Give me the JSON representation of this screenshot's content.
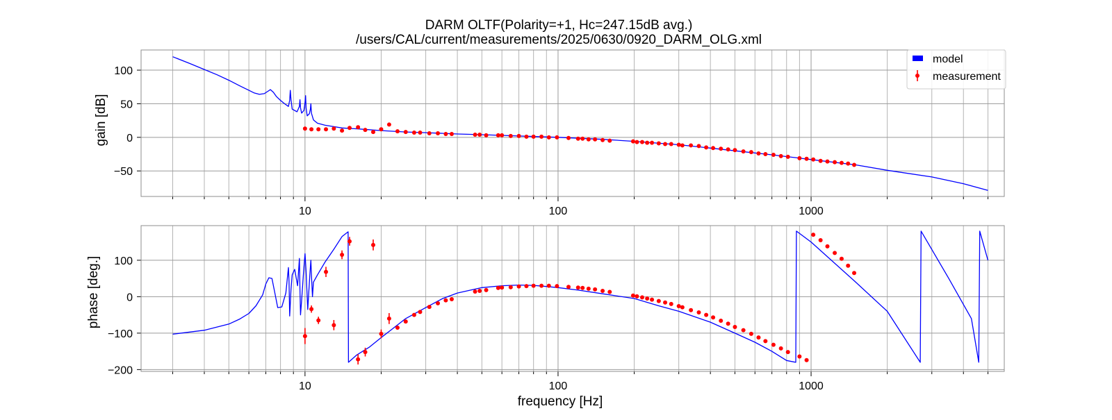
{
  "chart_data": {
    "type": "line",
    "title": "DARM OLTF(Polarity=+1,  Hc=247.15dB avg.)",
    "subtitle": "/users/CAL/current/measurements/2025/0630/0920_DARM_OLG.xml",
    "xlabel": "frequency [Hz]",
    "x_scale": "log",
    "xlim": [
      2.25,
      5800
    ],
    "x_major_ticks": [
      10,
      100,
      1000
    ],
    "x_tick_labels": [
      "10",
      "100",
      "1000"
    ],
    "grid": true,
    "legend_position": "top-right",
    "colors": {
      "model": "#0000ff",
      "measurement": "#ff0000"
    },
    "panels": [
      {
        "name": "gain",
        "ylabel": "gain [dB]",
        "ylim": [
          -88,
          130
        ],
        "y_ticks": [
          100,
          50,
          0,
          -50
        ],
        "y_tick_labels": [
          "100",
          "50",
          "0",
          "−50"
        ],
        "series": [
          {
            "name": "model",
            "style": "line",
            "x": [
              3,
              3.5,
              4,
              4.5,
              5,
              5.5,
              6,
              6.3,
              6.6,
              6.9,
              7.1,
              7.3,
              7.5,
              7.7,
              8,
              8.3,
              8.6,
              8.7,
              8.75,
              8.8,
              8.9,
              9.3,
              9.5,
              9.55,
              9.6,
              9.7,
              9.9,
              10.0,
              10.05,
              10.1,
              10.2,
              10.4,
              10.5,
              10.55,
              10.6,
              10.8,
              11.2,
              12,
              14,
              17,
              20,
              25,
              30,
              40,
              50,
              70,
              100,
              150,
              200,
              300,
              400,
              500,
              700,
              1000,
              1500,
              2000,
              3000,
              4000,
              5000
            ],
            "y": [
              120,
              110,
              101,
              93,
              85,
              77,
              70,
              66,
              64,
              65,
              68,
              71,
              67,
              61,
              55,
              50,
              46,
              55,
              70,
              56,
              42,
              38,
              46,
              56,
              44,
              36,
              40,
              52,
              62,
              44,
              32,
              35,
              42,
              50,
              36,
              26,
              21,
              18,
              14,
              12,
              10,
              8,
              7,
              5,
              4,
              2,
              0,
              -3,
              -6,
              -11,
              -16,
              -20,
              -26,
              -33,
              -41,
              -49,
              -59,
              -69,
              -79
            ]
          },
          {
            "name": "measurement",
            "style": "errorbar",
            "x": [
              10,
              10.6,
              11.3,
              12.1,
              13,
              14,
              15,
              16.2,
              17.3,
              18.6,
              20,
              21.5,
              23.2,
              25,
              27,
              28.5,
              31,
              33.5,
              36,
              38,
              47,
              49,
              52,
              58,
              60,
              65,
              70,
              75,
              80,
              86,
              92,
              99,
              110,
              120,
              125,
              132,
              140,
              150,
              160,
              198,
              205,
              215,
              225,
              235,
              250,
              265,
              280,
              300,
              310,
              335,
              360,
              385,
              410,
              440,
              470,
              500,
              540,
              580,
              620,
              660,
              710,
              760,
              810,
              900,
              960,
              1020,
              1090,
              1160,
              1240,
              1320,
              1400,
              1480
            ],
            "y": [
              13,
              12,
              12,
              12,
              13,
              10,
              14,
              15,
              11,
              8,
              12,
              19,
              9,
              8,
              7,
              7,
              6,
              6,
              5,
              5,
              4,
              4,
              3,
              3,
              3,
              2,
              2,
              1,
              1,
              1,
              0,
              0,
              -1,
              -2,
              -2,
              -3,
              -3,
              -4,
              -5,
              -6,
              -7,
              -7,
              -8,
              -8,
              -9,
              -10,
              -10,
              -11,
              -12,
              -12,
              -13,
              -15,
              -16,
              -17,
              -18,
              -19,
              -21,
              -22,
              -24,
              -25,
              -26,
              -28,
              -29,
              -31,
              -32,
              -33,
              -35,
              -36,
              -37,
              -38,
              -39,
              -41
            ],
            "yerr": [
              3,
              1,
              1,
              1,
              1,
              1,
              1,
              1,
              1,
              1,
              1,
              1,
              1,
              0,
              0,
              0,
              0,
              0,
              0,
              0,
              0,
              0,
              0,
              0,
              0,
              0,
              0,
              0,
              0,
              0,
              0,
              0,
              0,
              0,
              0,
              0,
              0,
              0,
              0,
              0,
              0,
              0,
              0,
              0,
              0,
              0,
              0,
              0,
              0,
              0,
              0,
              0,
              0,
              0,
              0,
              0,
              0,
              0,
              0,
              0,
              0,
              0,
              0,
              0,
              0,
              0,
              0,
              0,
              0,
              0,
              0,
              0
            ]
          }
        ]
      },
      {
        "name": "phase",
        "ylabel": "phase [deg.]",
        "ylim": [
          -205,
          195
        ],
        "y_ticks": [
          100,
          0,
          -100,
          -200
        ],
        "y_tick_labels": [
          "100",
          "0",
          "−100",
          "−200"
        ],
        "series": [
          {
            "name": "model",
            "style": "line",
            "x": [
              3,
              4,
              5,
              5.5,
              6,
              6.4,
              6.8,
              7.0,
              7.2,
              7.4,
              7.6,
              7.8,
              8.1,
              8.4,
              8.6,
              8.65,
              8.7,
              8.75,
              8.8,
              8.9,
              9.1,
              9.35,
              9.5,
              9.55,
              9.6,
              9.7,
              9.85,
              9.95,
              10.0,
              10.1,
              10.25,
              10.45,
              10.55,
              10.6,
              10.7,
              10.8,
              11.2,
              12,
              13,
              14,
              14.8,
              14.85,
              16,
              18,
              20,
              22,
              25,
              30,
              35,
              40,
              50,
              60,
              70,
              80,
              90,
              100,
              120,
              150,
              200,
              250,
              300,
              400,
              500,
              600,
              700,
              800,
              870,
              875,
              1000,
              1500,
              2000,
              2700,
              2720,
              3500,
              4300,
              4600,
              4640,
              5000
            ],
            "y": [
              -103,
              -92,
              -75,
              -62,
              -46,
              -25,
              5,
              35,
              52,
              50,
              10,
              -30,
              -28,
              10,
              80,
              40,
              -53,
              -20,
              20,
              60,
              75,
              30,
              105,
              20,
              -50,
              -10,
              60,
              100,
              118,
              70,
              -35,
              60,
              100,
              60,
              0,
              40,
              60,
              95,
              130,
              165,
              178,
              -180,
              -160,
              -138,
              -112,
              -90,
              -60,
              -30,
              -5,
              10,
              25,
              30,
              32,
              31,
              28,
              25,
              18,
              8,
              -5,
              -25,
              -40,
              -70,
              -100,
              -125,
              -150,
              -175,
              -180,
              180,
              150,
              40,
              -40,
              -180,
              180,
              50,
              -60,
              -180,
              180,
              100
            ]
          },
          {
            "name": "measurement",
            "style": "errorbar",
            "x": [
              10,
              10.6,
              11.3,
              12.1,
              13,
              14,
              15,
              16.2,
              17.3,
              18.6,
              20,
              21.5,
              23.2,
              25,
              27,
              28.5,
              31,
              33.5,
              36,
              38,
              47,
              49,
              52,
              58,
              60,
              65,
              70,
              75,
              80,
              86,
              92,
              99,
              110,
              120,
              125,
              132,
              140,
              150,
              160,
              198,
              205,
              215,
              225,
              235,
              250,
              265,
              280,
              300,
              310,
              335,
              360,
              385,
              410,
              440,
              470,
              500,
              540,
              580,
              620,
              660,
              710,
              760,
              810,
              900,
              960,
              1020,
              1090,
              1160,
              1240,
              1320,
              1400,
              1480
            ],
            "y": [
              -108,
              -34,
              -65,
              68,
              -78,
              115,
              152,
              -172,
              -152,
              142,
              -102,
              -60,
              -85,
              -68,
              -50,
              -42,
              -28,
              -18,
              -10,
              -7,
              14,
              16,
              18,
              24,
              25,
              26,
              28,
              29,
              30,
              30,
              30,
              29,
              27,
              25,
              24,
              22,
              20,
              16,
              13,
              3,
              1,
              -2,
              -5,
              -8,
              -12,
              -16,
              -20,
              -26,
              -29,
              -37,
              -43,
              -50,
              -57,
              -66,
              -74,
              -83,
              -92,
              -102,
              -112,
              -122,
              -132,
              -142,
              -152,
              -164,
              -174,
              170,
              155,
              138,
              120,
              104,
              85,
              65
            ],
            "yerr": [
              22,
              10,
              10,
              14,
              14,
              12,
              12,
              14,
              12,
              15,
              12,
              15,
              5,
              5,
              4,
              4,
              4,
              3,
              3,
              3,
              3,
              3,
              3,
              2,
              2,
              2,
              2,
              2,
              2,
              2,
              2,
              2,
              2,
              2,
              2,
              2,
              2,
              2,
              2,
              2,
              2,
              2,
              2,
              2,
              2,
              2,
              2,
              2,
              2,
              2,
              2,
              2,
              2,
              2,
              2,
              2,
              2,
              2,
              2,
              2,
              2,
              2,
              2,
              2,
              2,
              2,
              2,
              2,
              2,
              2,
              2,
              2
            ]
          }
        ]
      }
    ]
  }
}
